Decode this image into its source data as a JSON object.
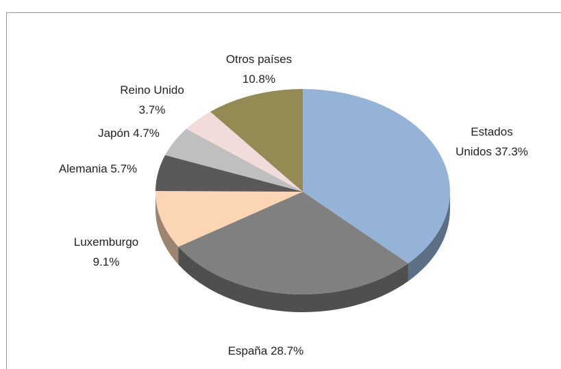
{
  "chart_data": {
    "type": "pie",
    "categories": [
      "Estados Unidos",
      "España",
      "Luxemburgo",
      "Alemania",
      "Japón",
      "Reino Unido",
      "Otros países"
    ],
    "values": [
      37.3,
      28.7,
      9.1,
      5.7,
      4.7,
      3.7,
      10.8
    ],
    "value_labels": [
      "37.3%",
      "28.7%",
      "9.1%",
      "5.7%",
      "4.7%",
      "3.7%",
      "10.8%"
    ],
    "colors": [
      "#95b3d7",
      "#808080",
      "#fcd5b5",
      "#595959",
      "#bfbfbf",
      "#f2dcdb",
      "#948a54"
    ]
  }
}
